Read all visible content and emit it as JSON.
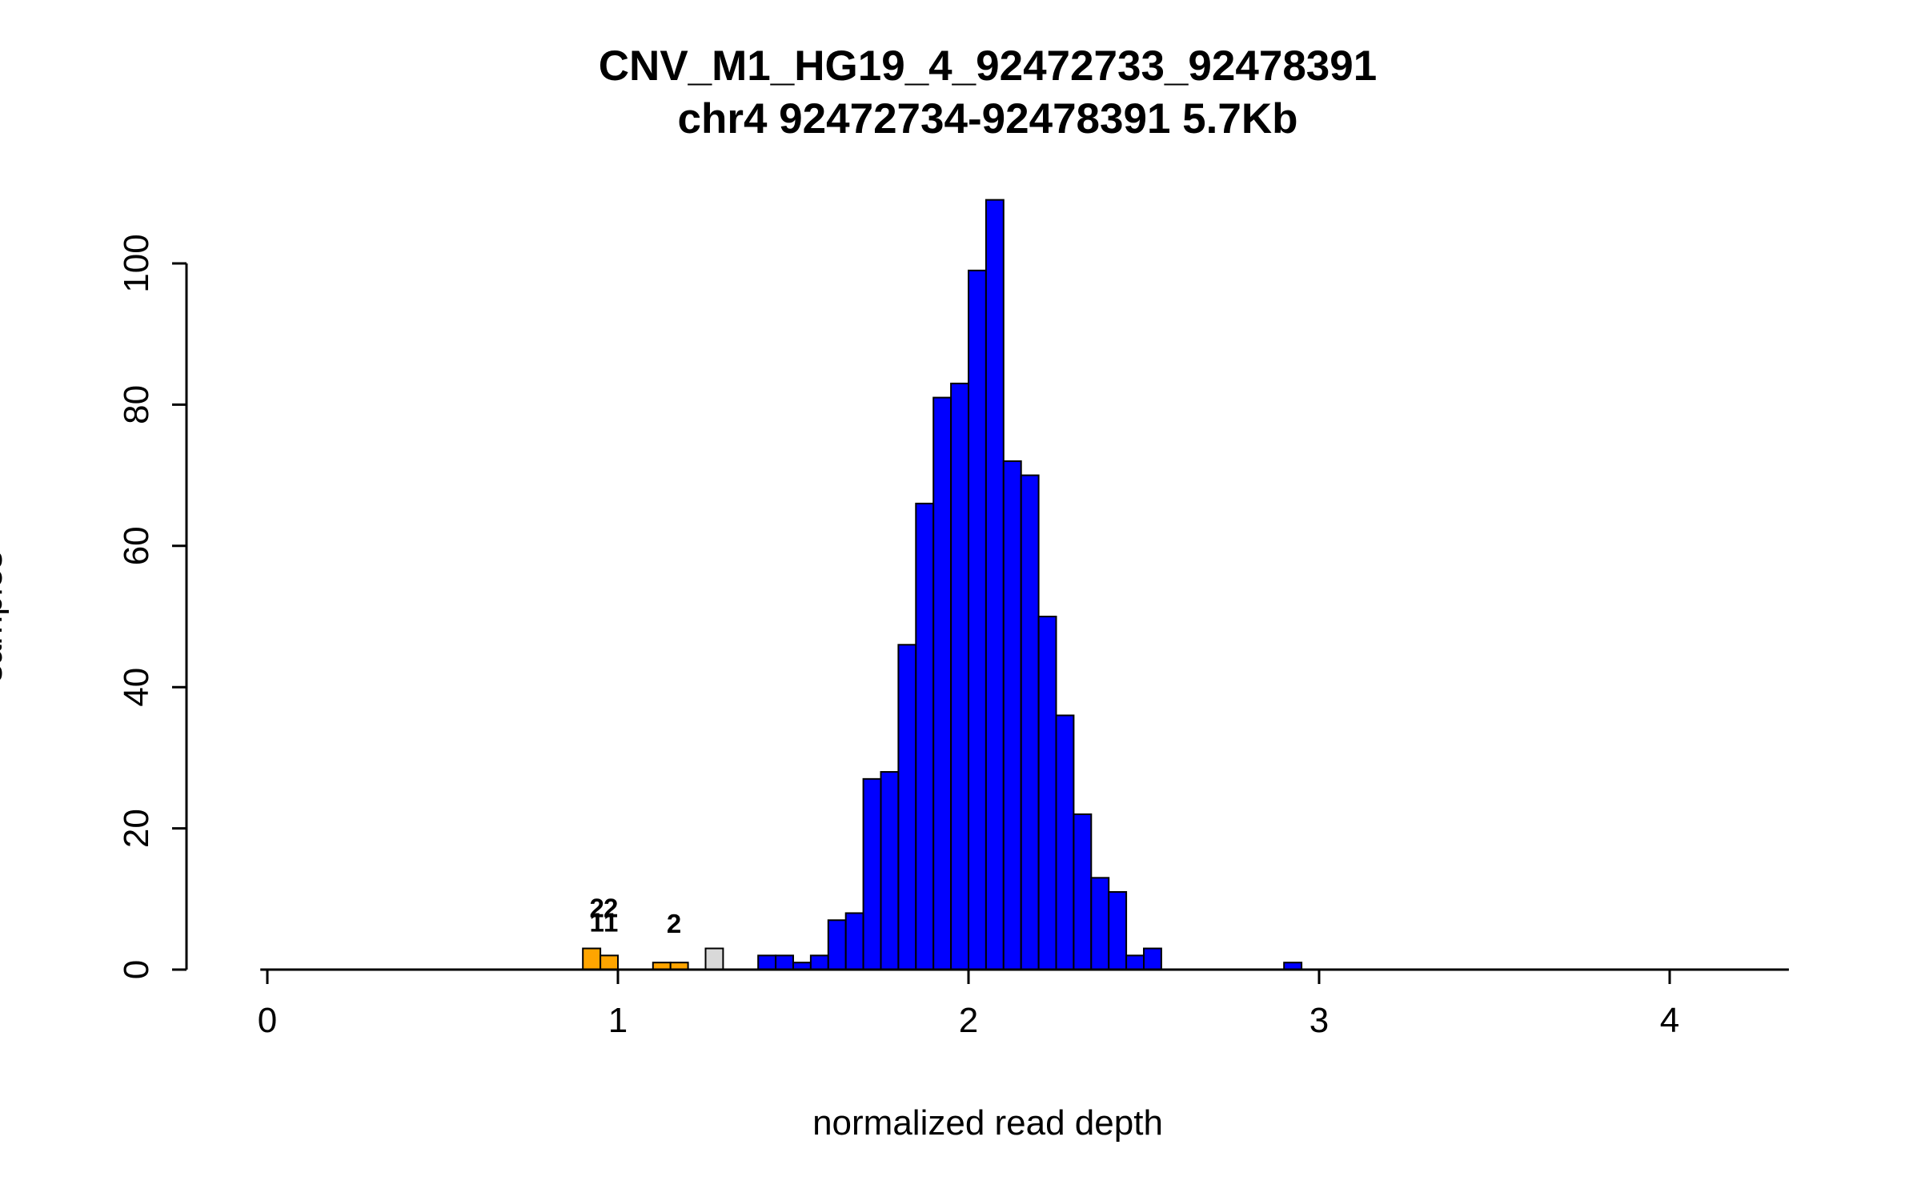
{
  "header": {
    "title": "CNV_M1_HG19_4_92472733_92478391",
    "subtitle": "chr4 92472734-92478391 5.7Kb"
  },
  "chart_data": {
    "type": "bar",
    "variant": "histogram",
    "title": "CNV_M1_HG19_4_92472733_92478391",
    "subtitle": "chr4 92472734-92478391 5.7Kb",
    "xlabel": "normalized read depth",
    "ylabel": "samples",
    "xlim": [
      -0.02,
      4.34
    ],
    "ylim": [
      0,
      109
    ],
    "x_ticks": [
      0,
      1,
      2,
      3,
      4
    ],
    "y_ticks": [
      0,
      20,
      40,
      60,
      80,
      100
    ],
    "bin_width": 0.05,
    "grid": false,
    "legend": "none",
    "colors": {
      "blue": "#0000ff",
      "orange": "#ffa500",
      "gray": "#d9d9d9",
      "stroke": "#000000"
    },
    "bars": [
      {
        "x": 0.9,
        "h": 3,
        "c": "orange"
      },
      {
        "x": 0.95,
        "h": 2,
        "c": "orange"
      },
      {
        "x": 1.1,
        "h": 1,
        "c": "orange"
      },
      {
        "x": 1.15,
        "h": 1,
        "c": "orange"
      },
      {
        "x": 1.25,
        "h": 3,
        "c": "gray"
      },
      {
        "x": 1.4,
        "h": 2,
        "c": "blue"
      },
      {
        "x": 1.45,
        "h": 2,
        "c": "blue"
      },
      {
        "x": 1.5,
        "h": 1,
        "c": "blue"
      },
      {
        "x": 1.55,
        "h": 2,
        "c": "blue"
      },
      {
        "x": 1.6,
        "h": 7,
        "c": "blue"
      },
      {
        "x": 1.65,
        "h": 8,
        "c": "blue"
      },
      {
        "x": 1.7,
        "h": 27,
        "c": "blue"
      },
      {
        "x": 1.75,
        "h": 28,
        "c": "blue"
      },
      {
        "x": 1.8,
        "h": 46,
        "c": "blue"
      },
      {
        "x": 1.85,
        "h": 66,
        "c": "blue"
      },
      {
        "x": 1.9,
        "h": 81,
        "c": "blue"
      },
      {
        "x": 1.95,
        "h": 83,
        "c": "blue"
      },
      {
        "x": 2.0,
        "h": 99,
        "c": "blue"
      },
      {
        "x": 2.05,
        "h": 109,
        "c": "blue"
      },
      {
        "x": 2.1,
        "h": 72,
        "c": "blue"
      },
      {
        "x": 2.15,
        "h": 70,
        "c": "blue"
      },
      {
        "x": 2.2,
        "h": 50,
        "c": "blue"
      },
      {
        "x": 2.25,
        "h": 36,
        "c": "blue"
      },
      {
        "x": 2.3,
        "h": 22,
        "c": "blue"
      },
      {
        "x": 2.35,
        "h": 13,
        "c": "blue"
      },
      {
        "x": 2.4,
        "h": 11,
        "c": "blue"
      },
      {
        "x": 2.45,
        "h": 2,
        "c": "blue"
      },
      {
        "x": 2.5,
        "h": 3,
        "c": "blue"
      },
      {
        "x": 2.9,
        "h": 1,
        "c": "blue"
      }
    ],
    "annotations": [
      {
        "x": 0.94,
        "y": 7.4,
        "text": "2"
      },
      {
        "x": 0.98,
        "y": 7.4,
        "text": "2"
      },
      {
        "x": 0.94,
        "y": 5.4,
        "text": "1"
      },
      {
        "x": 0.98,
        "y": 5.4,
        "text": "1"
      },
      {
        "x": 1.16,
        "y": 5.2,
        "text": "2"
      }
    ]
  }
}
